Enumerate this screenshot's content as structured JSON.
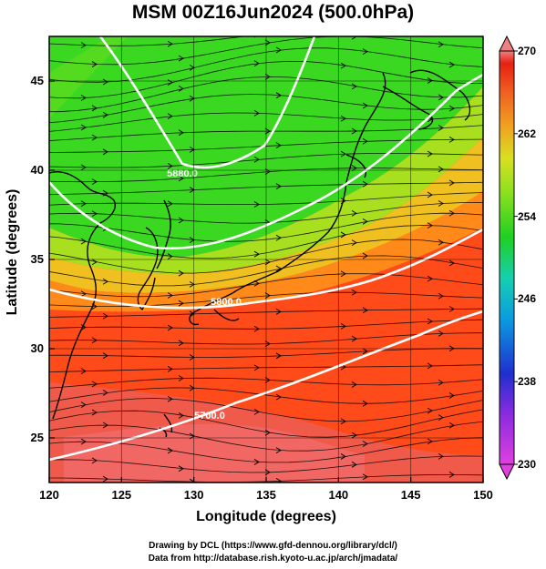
{
  "title": "MSM 00Z16Jun2024 (500.0hPa)",
  "x_axis": {
    "label": "Longitude (degrees)",
    "range": [
      120,
      150
    ],
    "ticks": [
      120,
      125,
      130,
      135,
      140,
      145,
      150
    ]
  },
  "y_axis": {
    "label": "Latitude  (degrees)",
    "range": [
      22.5,
      47.5
    ],
    "ticks": [
      25,
      30,
      35,
      40,
      45
    ]
  },
  "colorbar": {
    "min": 230,
    "max": 270,
    "ticks": [
      230,
      238,
      246,
      254,
      262,
      270
    ],
    "colors": [
      "#e040e0",
      "#8b2be0",
      "#1f2fd0",
      "#0b9be0",
      "#15d0b0",
      "#20d020",
      "#8fe020",
      "#d8e020",
      "#f0a020",
      "#f06020",
      "#e82010",
      "#f08080"
    ]
  },
  "contours": [
    {
      "label": "5880.0"
    },
    {
      "label": "5800.0"
    },
    {
      "label": "5700.0"
    }
  ],
  "credits": [
    "Drawing by DCL (https://www.gfd-dennou.org/library/dcl/)",
    "Data from http://database.rish.kyoto-u.ac.jp/arch/jmadata/"
  ]
}
